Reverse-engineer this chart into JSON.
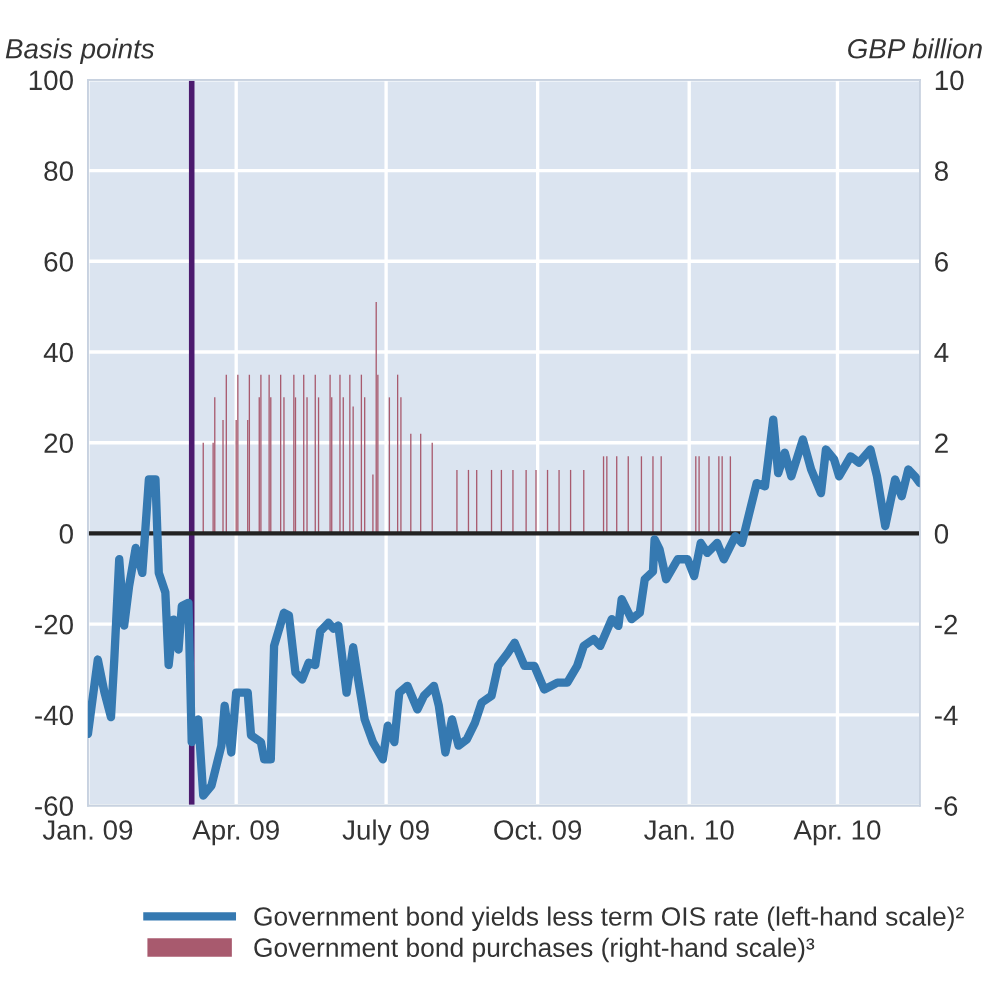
{
  "chart_data": {
    "type": "line",
    "ylabel": "Basis points",
    "y2label": "GBP billion",
    "xlim": [
      "2009-01-01",
      "2010-05-21"
    ],
    "xticks": [
      {
        "value": "2009-01-01",
        "label": "Jan. 09"
      },
      {
        "value": "2009-04-01",
        "label": "Apr. 09"
      },
      {
        "value": "2009-07-01",
        "label": "July 09"
      },
      {
        "value": "2009-10-01",
        "label": "Oct. 09"
      },
      {
        "value": "2010-01-01",
        "label": "Jan. 10"
      },
      {
        "value": "2010-04-01",
        "label": "Apr. 10"
      }
    ],
    "ylim": [
      -60,
      100
    ],
    "yticks": [
      -60,
      -40,
      -20,
      0,
      20,
      40,
      60,
      80,
      100
    ],
    "y2lim": [
      -6,
      10
    ],
    "y2ticks": [
      -6,
      -4,
      -2,
      0,
      2,
      4,
      6,
      8,
      10
    ],
    "grid": true,
    "legend": "bottom",
    "ref_lines": [
      {
        "axis": "x",
        "value": "2009-03-05",
        "color": "#4b1a6e"
      },
      {
        "axis": "y",
        "value": 0,
        "color": "#222222"
      }
    ],
    "series": [
      {
        "type": "bar",
        "axis": "y2",
        "name": "Government bond purchases (right-hand scale)³",
        "color": "#a85a6e",
        "x": [
          "2009-03-12",
          "2009-03-18",
          "2009-03-19",
          "2009-03-24",
          "2009-03-26",
          "2009-04-01",
          "2009-04-02",
          "2009-04-08",
          "2009-04-09",
          "2009-04-15",
          "2009-04-16",
          "2009-04-21",
          "2009-04-22",
          "2009-04-28",
          "2009-04-30",
          "2009-05-06",
          "2009-05-07",
          "2009-05-12",
          "2009-05-14",
          "2009-05-19",
          "2009-05-21",
          "2009-05-28",
          "2009-05-29",
          "2009-06-03",
          "2009-06-05",
          "2009-06-09",
          "2009-06-11",
          "2009-06-16",
          "2009-06-18",
          "2009-06-23",
          "2009-06-25",
          "2009-06-26",
          "2009-07-03",
          "2009-07-08",
          "2009-07-10",
          "2009-07-16",
          "2009-07-22",
          "2009-07-29",
          "2009-08-13",
          "2009-08-20",
          "2009-08-25",
          "2009-09-03",
          "2009-09-09",
          "2009-09-16",
          "2009-09-24",
          "2009-09-30",
          "2009-10-07",
          "2009-10-14",
          "2009-10-21",
          "2009-10-29",
          "2009-11-10",
          "2009-11-12",
          "2009-11-18",
          "2009-11-25",
          "2009-12-03",
          "2009-12-10",
          "2009-12-15",
          "2010-01-05",
          "2010-01-07",
          "2010-01-13",
          "2010-01-19",
          "2010-01-21",
          "2010-01-26"
        ],
        "values": [
          2.0,
          2.0,
          3.0,
          2.5,
          3.5,
          2.5,
          3.5,
          2.5,
          3.5,
          3.0,
          3.5,
          3.5,
          3.0,
          3.5,
          3.0,
          3.5,
          3.0,
          3.5,
          3.0,
          3.5,
          3.0,
          3.5,
          3.0,
          3.5,
          3.0,
          3.5,
          2.8,
          3.5,
          3.0,
          1.3,
          5.1,
          3.5,
          3.0,
          3.5,
          3.0,
          2.2,
          2.2,
          2.0,
          1.4,
          1.4,
          1.4,
          1.4,
          1.4,
          1.4,
          1.4,
          1.4,
          1.4,
          1.4,
          1.4,
          1.4,
          1.7,
          1.7,
          1.7,
          1.7,
          1.7,
          1.7,
          1.7,
          1.7,
          1.7,
          1.7,
          1.7,
          1.7,
          1.7
        ]
      },
      {
        "name": "Government bond yields less term OIS rate (left-hand scale)²",
        "color": "#3579b1",
        "x": [
          "2009-01-01",
          "2009-01-07",
          "2009-01-11",
          "2009-01-15",
          "2009-01-17",
          "2009-01-20",
          "2009-01-23",
          "2009-01-26",
          "2009-01-30",
          "2009-02-03",
          "2009-02-07",
          "2009-02-11",
          "2009-02-13",
          "2009-02-17",
          "2009-02-19",
          "2009-02-22",
          "2009-02-25",
          "2009-02-27",
          "2009-03-03",
          "2009-03-05",
          "2009-03-09",
          "2009-03-12",
          "2009-03-17",
          "2009-03-23",
          "2009-03-25",
          "2009-03-29",
          "2009-04-01",
          "2009-04-08",
          "2009-04-10",
          "2009-04-16",
          "2009-04-18",
          "2009-04-22",
          "2009-04-24",
          "2009-04-30",
          "2009-05-03",
          "2009-05-07",
          "2009-05-11",
          "2009-05-15",
          "2009-05-19",
          "2009-05-22",
          "2009-05-27",
          "2009-05-30",
          "2009-06-02",
          "2009-06-07",
          "2009-06-11",
          "2009-06-14",
          "2009-06-18",
          "2009-06-23",
          "2009-06-29",
          "2009-07-02",
          "2009-07-06",
          "2009-07-09",
          "2009-07-14",
          "2009-07-20",
          "2009-07-24",
          "2009-07-30",
          "2009-08-02",
          "2009-08-06",
          "2009-08-10",
          "2009-08-14",
          "2009-08-19",
          "2009-08-24",
          "2009-08-28",
          "2009-09-03",
          "2009-09-07",
          "2009-09-13",
          "2009-09-17",
          "2009-09-23",
          "2009-09-29",
          "2009-10-05",
          "2009-10-13",
          "2009-10-19",
          "2009-10-25",
          "2009-10-29",
          "2009-11-04",
          "2009-11-08",
          "2009-11-15",
          "2009-11-19",
          "2009-11-21",
          "2009-11-27",
          "2009-12-02",
          "2009-12-05",
          "2009-12-10",
          "2009-12-11",
          "2009-12-14",
          "2009-12-18",
          "2009-12-25",
          "2009-12-31",
          "2010-01-04",
          "2010-01-08",
          "2010-01-12",
          "2010-01-18",
          "2010-01-22",
          "2010-01-29",
          "2010-02-02",
          "2010-02-06",
          "2010-02-11",
          "2010-02-16",
          "2010-02-21",
          "2010-02-24",
          "2010-02-28",
          "2010-03-04",
          "2010-03-11",
          "2010-03-16",
          "2010-03-22",
          "2010-03-25",
          "2010-03-30",
          "2010-04-02",
          "2010-04-09",
          "2010-04-14",
          "2010-04-21",
          "2010-04-25",
          "2010-04-30",
          "2010-05-06",
          "2010-05-10",
          "2010-05-14",
          "2010-05-18",
          "2010-05-21"
        ],
        "values": [
          -44.2,
          -27.8,
          -35,
          -40.5,
          -27.8,
          -5.7,
          -20.3,
          -11.6,
          -3.2,
          -8.7,
          11.9,
          11.9,
          -8.7,
          -13,
          -29,
          -19,
          -25.6,
          -16,
          -15.3,
          -46,
          -41,
          -57.8,
          -55.6,
          -46.8,
          -38,
          -48.3,
          -35.1,
          -35.1,
          -44.5,
          -46,
          -49.8,
          -49.8,
          -24.8,
          -17.5,
          -18.1,
          -30.7,
          -32.2,
          -28.5,
          -29,
          -21.6,
          -19.7,
          -21,
          -20.3,
          -35.1,
          -25.1,
          -32.2,
          -41,
          -46,
          -49.8,
          -42.4,
          -46,
          -35.1,
          -33.6,
          -38.8,
          -35.8,
          -33.6,
          -38,
          -48.3,
          -41,
          -46.8,
          -45.4,
          -41.7,
          -37.3,
          -35.8,
          -29.2,
          -26.3,
          -24.1,
          -29.2,
          -29.2,
          -34.4,
          -32.9,
          -32.9,
          -29.2,
          -24.8,
          -23.3,
          -24.8,
          -18.9,
          -20.4,
          -14.5,
          -18.9,
          -17.5,
          -10.1,
          -8.4,
          -1.3,
          -3.5,
          -10.1,
          -5.7,
          -5.7,
          -9.4,
          -2.1,
          -4.3,
          -2.1,
          -5.7,
          -0.6,
          -2.1,
          3.8,
          11.1,
          10.4,
          25.1,
          13.3,
          17.8,
          12.6,
          20.7,
          14.1,
          8.9,
          18.5,
          16.3,
          12.6,
          17,
          15.6,
          18.5,
          12.6,
          1.6,
          11.9,
          8.2,
          14.1,
          12.6,
          11.1
        ]
      }
    ]
  }
}
